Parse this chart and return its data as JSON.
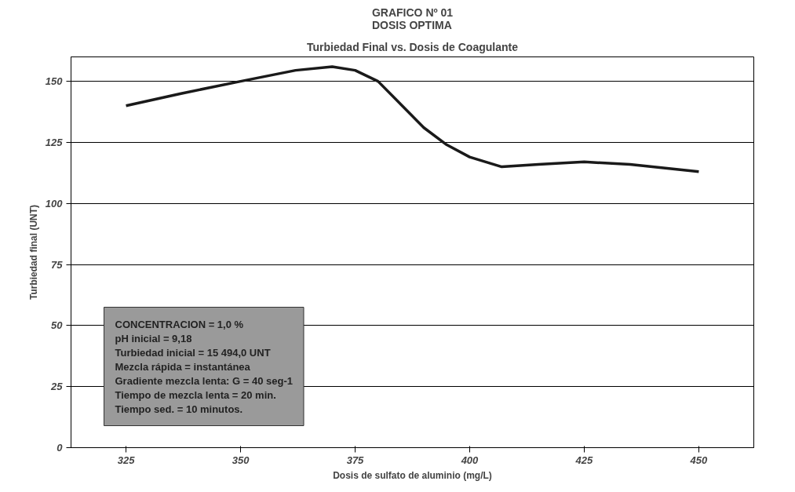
{
  "chart_data": {
    "type": "line",
    "title": "GRAFICO Nº 01\nDOSIS OPTIMA",
    "subtitle": "Turbiedad Final vs. Dosis de Coagulante",
    "xlabel": "Dosis de sulfato de aluminio (mg/L)",
    "ylabel": "Turbiedad final (UNT)",
    "x": [
      325,
      337,
      350,
      362,
      370,
      375,
      380,
      390,
      395,
      400,
      407,
      415,
      425,
      435,
      450
    ],
    "series": [
      {
        "color": "#1a1a1a",
        "values": [
          140,
          145,
          150,
          154.5,
          156,
          154.5,
          150,
          131,
          124,
          119,
          115,
          116,
          117,
          116,
          113
        ]
      }
    ],
    "xlim": [
      313,
      462
    ],
    "xticks": [
      325,
      350,
      375,
      400,
      425,
      450
    ],
    "ylim": [
      0,
      160
    ],
    "yticks": [
      0,
      25,
      50,
      75,
      100,
      125,
      150
    ],
    "grid": "y",
    "marker": "none",
    "line_style": "solid",
    "annotations": [
      "CONCENTRACION = 1,0 %",
      "pH inicial = 9,18",
      "Turbiedad inicial = 15 494,0 UNT",
      "Mezcla rápida = instantánea",
      "Gradiente mezcla lenta: G = 40 seg-1",
      "Tiempo de mezcla lenta = 20 min.",
      "Tiempo sed. = 10 minutos."
    ]
  }
}
